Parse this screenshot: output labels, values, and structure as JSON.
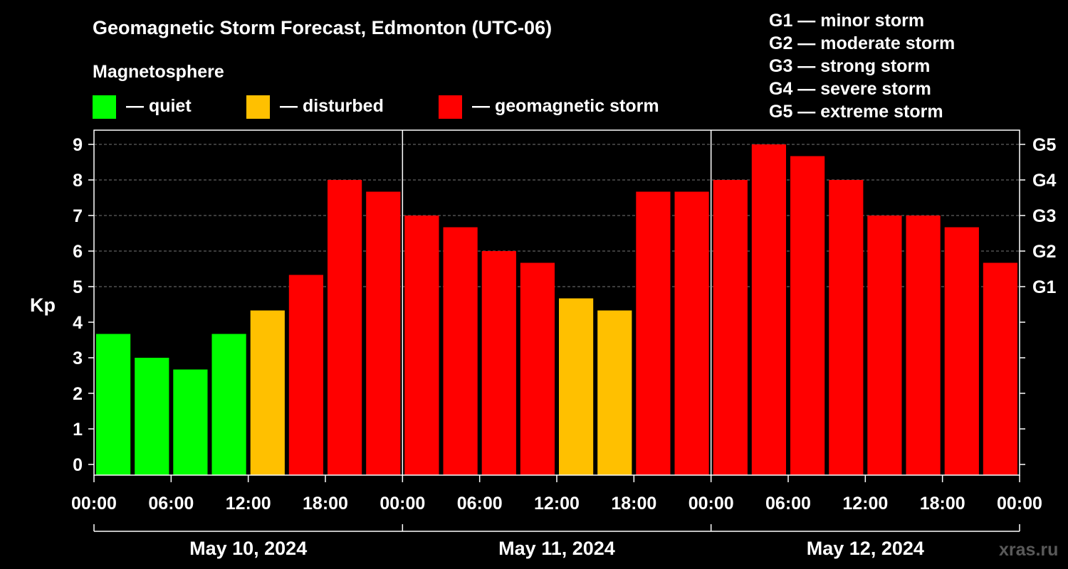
{
  "chart_data": {
    "type": "bar",
    "title": "Geomagnetic Storm Forecast, Edmonton (UTC-06)",
    "ylabel": "Kp",
    "ylim": [
      0,
      9
    ],
    "yticks": [
      0,
      1,
      2,
      3,
      4,
      5,
      6,
      7,
      8,
      9
    ],
    "grid": "dashed horizontal at Kp 5-9",
    "legend_title": "Magnetosphere",
    "legend": [
      {
        "label": "— quiet",
        "color": "#00ff00"
      },
      {
        "label": "— disturbed",
        "color": "#ffc000"
      },
      {
        "label": "— geomagnetic storm",
        "color": "#ff0000"
      }
    ],
    "storm_scale": [
      "G1 — minor storm",
      "G2 — moderate storm",
      "G3 — strong storm",
      "G4 — severe storm",
      "G5 — extreme storm"
    ],
    "right_axis": [
      {
        "kp": 5,
        "label": "G1"
      },
      {
        "kp": 6,
        "label": "G2"
      },
      {
        "kp": 7,
        "label": "G3"
      },
      {
        "kp": 8,
        "label": "G4"
      },
      {
        "kp": 9,
        "label": "G5"
      }
    ],
    "x_tick_labels": [
      "00:00",
      "06:00",
      "12:00",
      "18:00",
      "00:00",
      "06:00",
      "12:00",
      "18:00",
      "00:00",
      "06:00",
      "12:00",
      "18:00",
      "00:00"
    ],
    "days": [
      "May 10, 2024",
      "May 11, 2024",
      "May 12, 2024"
    ],
    "categories": [
      "May 10 00:00",
      "May 10 03:00",
      "May 10 06:00",
      "May 10 09:00",
      "May 10 12:00",
      "May 10 15:00",
      "May 10 18:00",
      "May 10 21:00",
      "May 11 00:00",
      "May 11 03:00",
      "May 11 06:00",
      "May 11 09:00",
      "May 11 12:00",
      "May 11 15:00",
      "May 11 18:00",
      "May 11 21:00",
      "May 12 00:00",
      "May 12 03:00",
      "May 12 06:00",
      "May 12 09:00",
      "May 12 12:00",
      "May 12 15:00",
      "May 12 18:00",
      "May 12 21:00"
    ],
    "values": [
      3.67,
      3.0,
      2.67,
      3.67,
      4.33,
      5.33,
      8.0,
      7.67,
      7.0,
      6.67,
      6.0,
      5.67,
      4.67,
      4.33,
      7.67,
      7.67,
      8.0,
      9.0,
      8.67,
      8.0,
      7.0,
      7.0,
      6.67,
      5.67
    ],
    "colors": [
      "#00ff00",
      "#00ff00",
      "#00ff00",
      "#00ff00",
      "#ffc000",
      "#ff0000",
      "#ff0000",
      "#ff0000",
      "#ff0000",
      "#ff0000",
      "#ff0000",
      "#ff0000",
      "#ffc000",
      "#ffc000",
      "#ff0000",
      "#ff0000",
      "#ff0000",
      "#ff0000",
      "#ff0000",
      "#ff0000",
      "#ff0000",
      "#ff0000",
      "#ff0000",
      "#ff0000"
    ]
  },
  "watermark": "xras.ru"
}
